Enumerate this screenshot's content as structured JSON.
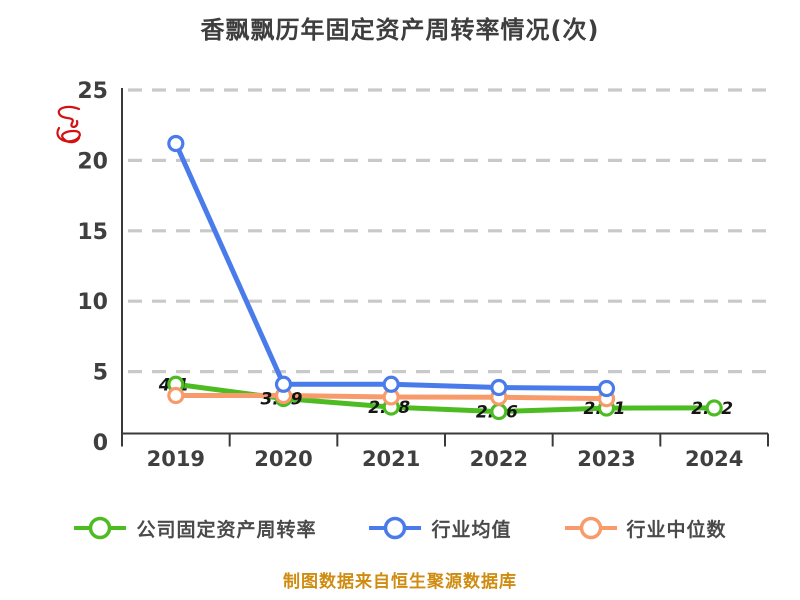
{
  "title": "香飘飘历年固定资产周转率情况(次)",
  "footer": "制图数据来自恒生聚源数据库",
  "colors": {
    "title_text": "#3e3e3e",
    "axis_line": "#3a3a3a",
    "axis_text": "#3f3f3f",
    "gridline": "#c9c9c9",
    "point_label_text": "#151515",
    "footer_text": "#cf8c10",
    "watermark_red": "#d41111",
    "background": "#ffffff"
  },
  "chart_data": {
    "type": "line",
    "title": "香飘飘历年固定资产周转率情况(次)",
    "categories": [
      "2019",
      "2020",
      "2021",
      "2022",
      "2023",
      "2024"
    ],
    "series": [
      {
        "name": "公司固定资产周转率",
        "color": "#4cbc22",
        "values": [
          4.1,
          3.09,
          2.48,
          2.16,
          2.41,
          2.42
        ],
        "point_labels": [
          "4.1",
          "3.09",
          "2.48",
          "2.16",
          "2.41",
          "2.42"
        ]
      },
      {
        "name": "行业均值",
        "color": "#4a7bea",
        "values": [
          21.2,
          4.1,
          4.1,
          3.87,
          3.8,
          null
        ],
        "point_labels": [
          "",
          "",
          "",
          "",
          "",
          ""
        ]
      },
      {
        "name": "行业中位数",
        "color": "#f89b6c",
        "values": [
          3.3,
          3.3,
          3.2,
          3.18,
          3.08,
          null
        ],
        "point_labels": [
          "",
          "",
          "",
          "",
          "",
          ""
        ]
      }
    ],
    "xlabel": "",
    "ylabel": "",
    "ylim": [
      0,
      25
    ],
    "yticks": [
      0,
      5,
      10,
      15,
      20,
      25
    ],
    "grid": "horizontal-dashed",
    "legend_position": "bottom",
    "marker": "open-circle"
  }
}
